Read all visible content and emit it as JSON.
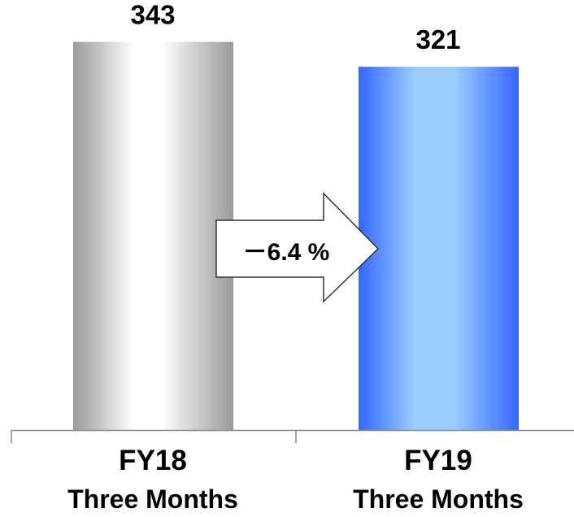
{
  "chart_data": {
    "type": "bar",
    "categories": [
      "FY18",
      "FY19"
    ],
    "category_sublabels": [
      "Three Months",
      "Three Months"
    ],
    "values": [
      343,
      321
    ],
    "value_labels": [
      "343",
      "321"
    ],
    "ylim": [
      0,
      380
    ],
    "grid": false,
    "annotation": {
      "text": "－6.4 %",
      "from_category": "FY18",
      "to_category": "FY19"
    },
    "colors": {
      "bar_fy18_edge": "#9a9a9a",
      "bar_fy18_highlight": "#ffffff",
      "bar_fy19_edge": "#3366ff",
      "bar_fy19_highlight": "#99ccff",
      "axis": "#888888",
      "arrow_fill": "#ffffff",
      "arrow_stroke": "#333333"
    }
  }
}
